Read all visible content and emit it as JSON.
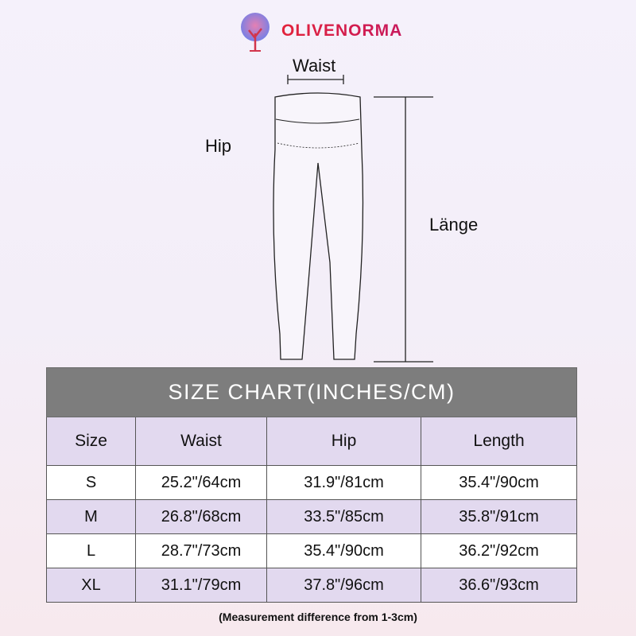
{
  "brand": {
    "name": "OLIVENORMA",
    "logo_icon": "tree-icon",
    "color": "#e2233b"
  },
  "diagram": {
    "waist_label": "Waist",
    "hip_label": "Hip",
    "length_label": "Länge"
  },
  "size_chart": {
    "title": "SIZE CHART(INCHES/CM)",
    "headers": [
      "Size",
      "Waist",
      "Hip",
      "Length"
    ],
    "rows": [
      [
        "S",
        "25.2\"/64cm",
        "31.9\"/81cm",
        "35.4\"/90cm"
      ],
      [
        "M",
        "26.8\"/68cm",
        "33.5\"/85cm",
        "35.8\"/91cm"
      ],
      [
        "L",
        "28.7\"/73cm",
        "35.4\"/90cm",
        "36.2\"/92cm"
      ],
      [
        "XL",
        "31.1\"/79cm",
        "37.8\"/96cm",
        "36.6\"/93cm"
      ]
    ],
    "header_color": "#7d7d7d",
    "stripe_color": "#e2d9ef"
  },
  "note": "(Measurement difference from 1-3cm)"
}
